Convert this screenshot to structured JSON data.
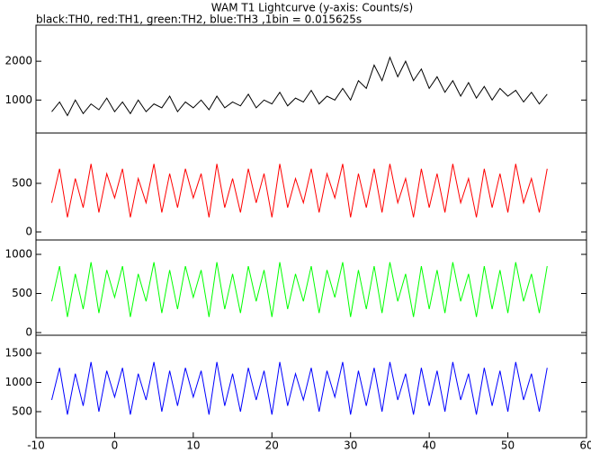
{
  "chart_data": [
    {
      "type": "line",
      "title": "WAM T1 Lightcurve (y-axis: Counts/s)",
      "subtitle": "black:TH0, red:TH1, green:TH2, blue:TH3 ,1bin = 0.015625s",
      "x": [
        -8,
        -7,
        -6,
        -5,
        -4,
        -3,
        -2,
        -1,
        0,
        1,
        2,
        3,
        4,
        5,
        6,
        7,
        8,
        9,
        10,
        11,
        12,
        13,
        14,
        15,
        16,
        17,
        18,
        19,
        20,
        21,
        22,
        23,
        24,
        25,
        26,
        27,
        28,
        29,
        30,
        31,
        32,
        33,
        34,
        35,
        36,
        37,
        38,
        39,
        40,
        41,
        42,
        43,
        44,
        45,
        46,
        47,
        48,
        49,
        50,
        51,
        52,
        53,
        54,
        55
      ],
      "series": [
        {
          "color": "#000000",
          "values": [
            700,
            950,
            600,
            1000,
            650,
            900,
            750,
            1050,
            700,
            950,
            650,
            1000,
            700,
            900,
            800,
            1100,
            700,
            950,
            800,
            1000,
            750,
            1100,
            800,
            950,
            850,
            1150,
            800,
            1000,
            900,
            1200,
            850,
            1050,
            950,
            1250,
            900,
            1100,
            1000,
            1300,
            1000,
            1500,
            1300,
            1900,
            1500,
            2100,
            1600,
            2000,
            1500,
            1800,
            1300,
            1600,
            1200,
            1500,
            1100,
            1450,
            1050,
            1350,
            1000,
            1300,
            1100,
            1250,
            950,
            1200,
            900,
            1150
          ]
        }
      ],
      "xlim": [
        -10,
        60
      ],
      "ylim": [
        150,
        2930
      ],
      "yticks": [
        1000,
        2000
      ]
    },
    {
      "type": "line",
      "x": [
        -8,
        -7,
        -6,
        -5,
        -4,
        -3,
        -2,
        -1,
        0,
        1,
        2,
        3,
        4,
        5,
        6,
        7,
        8,
        9,
        10,
        11,
        12,
        13,
        14,
        15,
        16,
        17,
        18,
        19,
        20,
        21,
        22,
        23,
        24,
        25,
        26,
        27,
        28,
        29,
        30,
        31,
        32,
        33,
        34,
        35,
        36,
        37,
        38,
        39,
        40,
        41,
        42,
        43,
        44,
        45,
        46,
        47,
        48,
        49,
        50,
        51,
        52,
        53,
        54,
        55
      ],
      "series": [
        {
          "color": "#ff0000",
          "values": [
            300,
            650,
            150,
            550,
            250,
            700,
            200,
            600,
            350,
            650,
            150,
            550,
            300,
            700,
            200,
            600,
            250,
            650,
            350,
            600,
            150,
            700,
            250,
            550,
            200,
            650,
            300,
            600,
            150,
            700,
            250,
            550,
            300,
            650,
            200,
            600,
            350,
            700,
            150,
            600,
            250,
            650,
            200,
            700,
            300,
            550,
            150,
            650,
            250,
            600,
            200,
            700,
            300,
            550,
            150,
            650,
            250,
            600,
            200,
            700,
            300,
            550,
            200,
            650
          ]
        }
      ],
      "xlim": [
        -10,
        60
      ],
      "ylim": [
        -83,
        1018
      ],
      "yticks": [
        0,
        500
      ]
    },
    {
      "type": "line",
      "x": [
        -8,
        -7,
        -6,
        -5,
        -4,
        -3,
        -2,
        -1,
        0,
        1,
        2,
        3,
        4,
        5,
        6,
        7,
        8,
        9,
        10,
        11,
        12,
        13,
        14,
        15,
        16,
        17,
        18,
        19,
        20,
        21,
        22,
        23,
        24,
        25,
        26,
        27,
        28,
        29,
        30,
        31,
        32,
        33,
        34,
        35,
        36,
        37,
        38,
        39,
        40,
        41,
        42,
        43,
        44,
        45,
        46,
        47,
        48,
        49,
        50,
        51,
        52,
        53,
        54,
        55
      ],
      "series": [
        {
          "color": "#00ff00",
          "values": [
            400,
            850,
            200,
            750,
            300,
            900,
            250,
            800,
            450,
            850,
            200,
            750,
            400,
            900,
            250,
            800,
            300,
            850,
            450,
            800,
            200,
            900,
            300,
            750,
            250,
            850,
            400,
            800,
            200,
            900,
            300,
            750,
            400,
            850,
            250,
            800,
            450,
            900,
            200,
            800,
            300,
            850,
            250,
            900,
            400,
            750,
            200,
            850,
            300,
            800,
            250,
            900,
            400,
            750,
            200,
            850,
            300,
            800,
            250,
            900,
            400,
            750,
            250,
            850
          ]
        }
      ],
      "xlim": [
        -10,
        60
      ],
      "ylim": [
        -34,
        1184
      ],
      "yticks": [
        0,
        500,
        1000
      ]
    },
    {
      "type": "line",
      "x": [
        -8,
        -7,
        -6,
        -5,
        -4,
        -3,
        -2,
        -1,
        0,
        1,
        2,
        3,
        4,
        5,
        6,
        7,
        8,
        9,
        10,
        11,
        12,
        13,
        14,
        15,
        16,
        17,
        18,
        19,
        20,
        21,
        22,
        23,
        24,
        25,
        26,
        27,
        28,
        29,
        30,
        31,
        32,
        33,
        34,
        35,
        36,
        37,
        38,
        39,
        40,
        41,
        42,
        43,
        44,
        45,
        46,
        47,
        48,
        49,
        50,
        51,
        52,
        53,
        54,
        55
      ],
      "series": [
        {
          "color": "#0000ff",
          "values": [
            700,
            1250,
            450,
            1150,
            600,
            1350,
            500,
            1200,
            750,
            1250,
            450,
            1150,
            700,
            1350,
            500,
            1200,
            600,
            1250,
            750,
            1200,
            450,
            1350,
            600,
            1150,
            500,
            1250,
            700,
            1200,
            450,
            1350,
            600,
            1150,
            700,
            1250,
            500,
            1200,
            750,
            1350,
            450,
            1200,
            600,
            1250,
            500,
            1350,
            700,
            1150,
            450,
            1250,
            600,
            1200,
            500,
            1350,
            700,
            1150,
            450,
            1250,
            600,
            1200,
            500,
            1350,
            700,
            1150,
            500,
            1250
          ]
        }
      ],
      "xlim": [
        -10,
        60
      ],
      "ylim": [
        54,
        1808
      ],
      "yticks": [
        500,
        1000,
        1500
      ],
      "xticks": [
        -10,
        0,
        10,
        20,
        30,
        40,
        50,
        60
      ]
    }
  ]
}
